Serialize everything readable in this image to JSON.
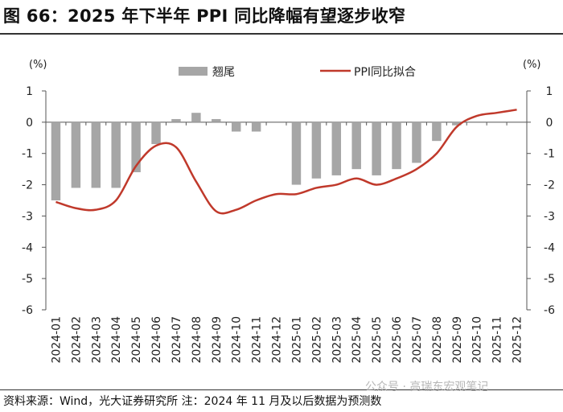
{
  "header": {
    "title": "图 66：2025 年下半年 PPI 同比降幅有望逐步收窄"
  },
  "footer": {
    "source": "资料来源：Wind，光大证券研究所  注：2024 年 11 月及以后数据为预测数",
    "watermark": "公众号 · 高瑞东宏观笔记"
  },
  "colors": {
    "bar": "#a6a6a6",
    "line": "#c0392b",
    "axis": "#555555"
  },
  "chart_data": {
    "type": "bar+line",
    "categories": [
      "2024-01",
      "2024-02",
      "2024-03",
      "2024-04",
      "2024-05",
      "2024-06",
      "2024-07",
      "2024-08",
      "2024-09",
      "2024-10",
      "2024-11",
      "2024-12",
      "2025-01",
      "2025-02",
      "2025-03",
      "2025-04",
      "2025-05",
      "2025-06",
      "2025-07",
      "2025-08",
      "2025-09",
      "2025-10",
      "2025-11",
      "2025-12"
    ],
    "series": [
      {
        "name": "翘尾",
        "type": "bar",
        "values": [
          -2.5,
          -2.1,
          -2.1,
          -2.1,
          -1.6,
          -0.7,
          0.1,
          0.3,
          0.1,
          -0.3,
          -0.3,
          0.0,
          -2.0,
          -1.8,
          -1.7,
          -1.5,
          -1.7,
          -1.5,
          -1.3,
          -0.6,
          -0.1,
          0.0,
          0.0,
          0.0
        ]
      },
      {
        "name": "PPI同比拟合",
        "type": "line",
        "values": [
          -2.55,
          -2.75,
          -2.8,
          -2.5,
          -1.4,
          -0.75,
          -0.8,
          -1.9,
          -2.85,
          -2.8,
          -2.5,
          -2.3,
          -2.3,
          -2.1,
          -2.0,
          -1.8,
          -2.0,
          -1.8,
          -1.5,
          -1.0,
          -0.15,
          0.2,
          0.3,
          0.4
        ]
      }
    ],
    "y_unit_left": "(%)",
    "y_unit_right": "(%)",
    "ylim": [
      -6,
      1
    ],
    "yticks": [
      1,
      0,
      -1,
      -2,
      -3,
      -4,
      -5,
      -6
    ],
    "legend_position": "top"
  }
}
